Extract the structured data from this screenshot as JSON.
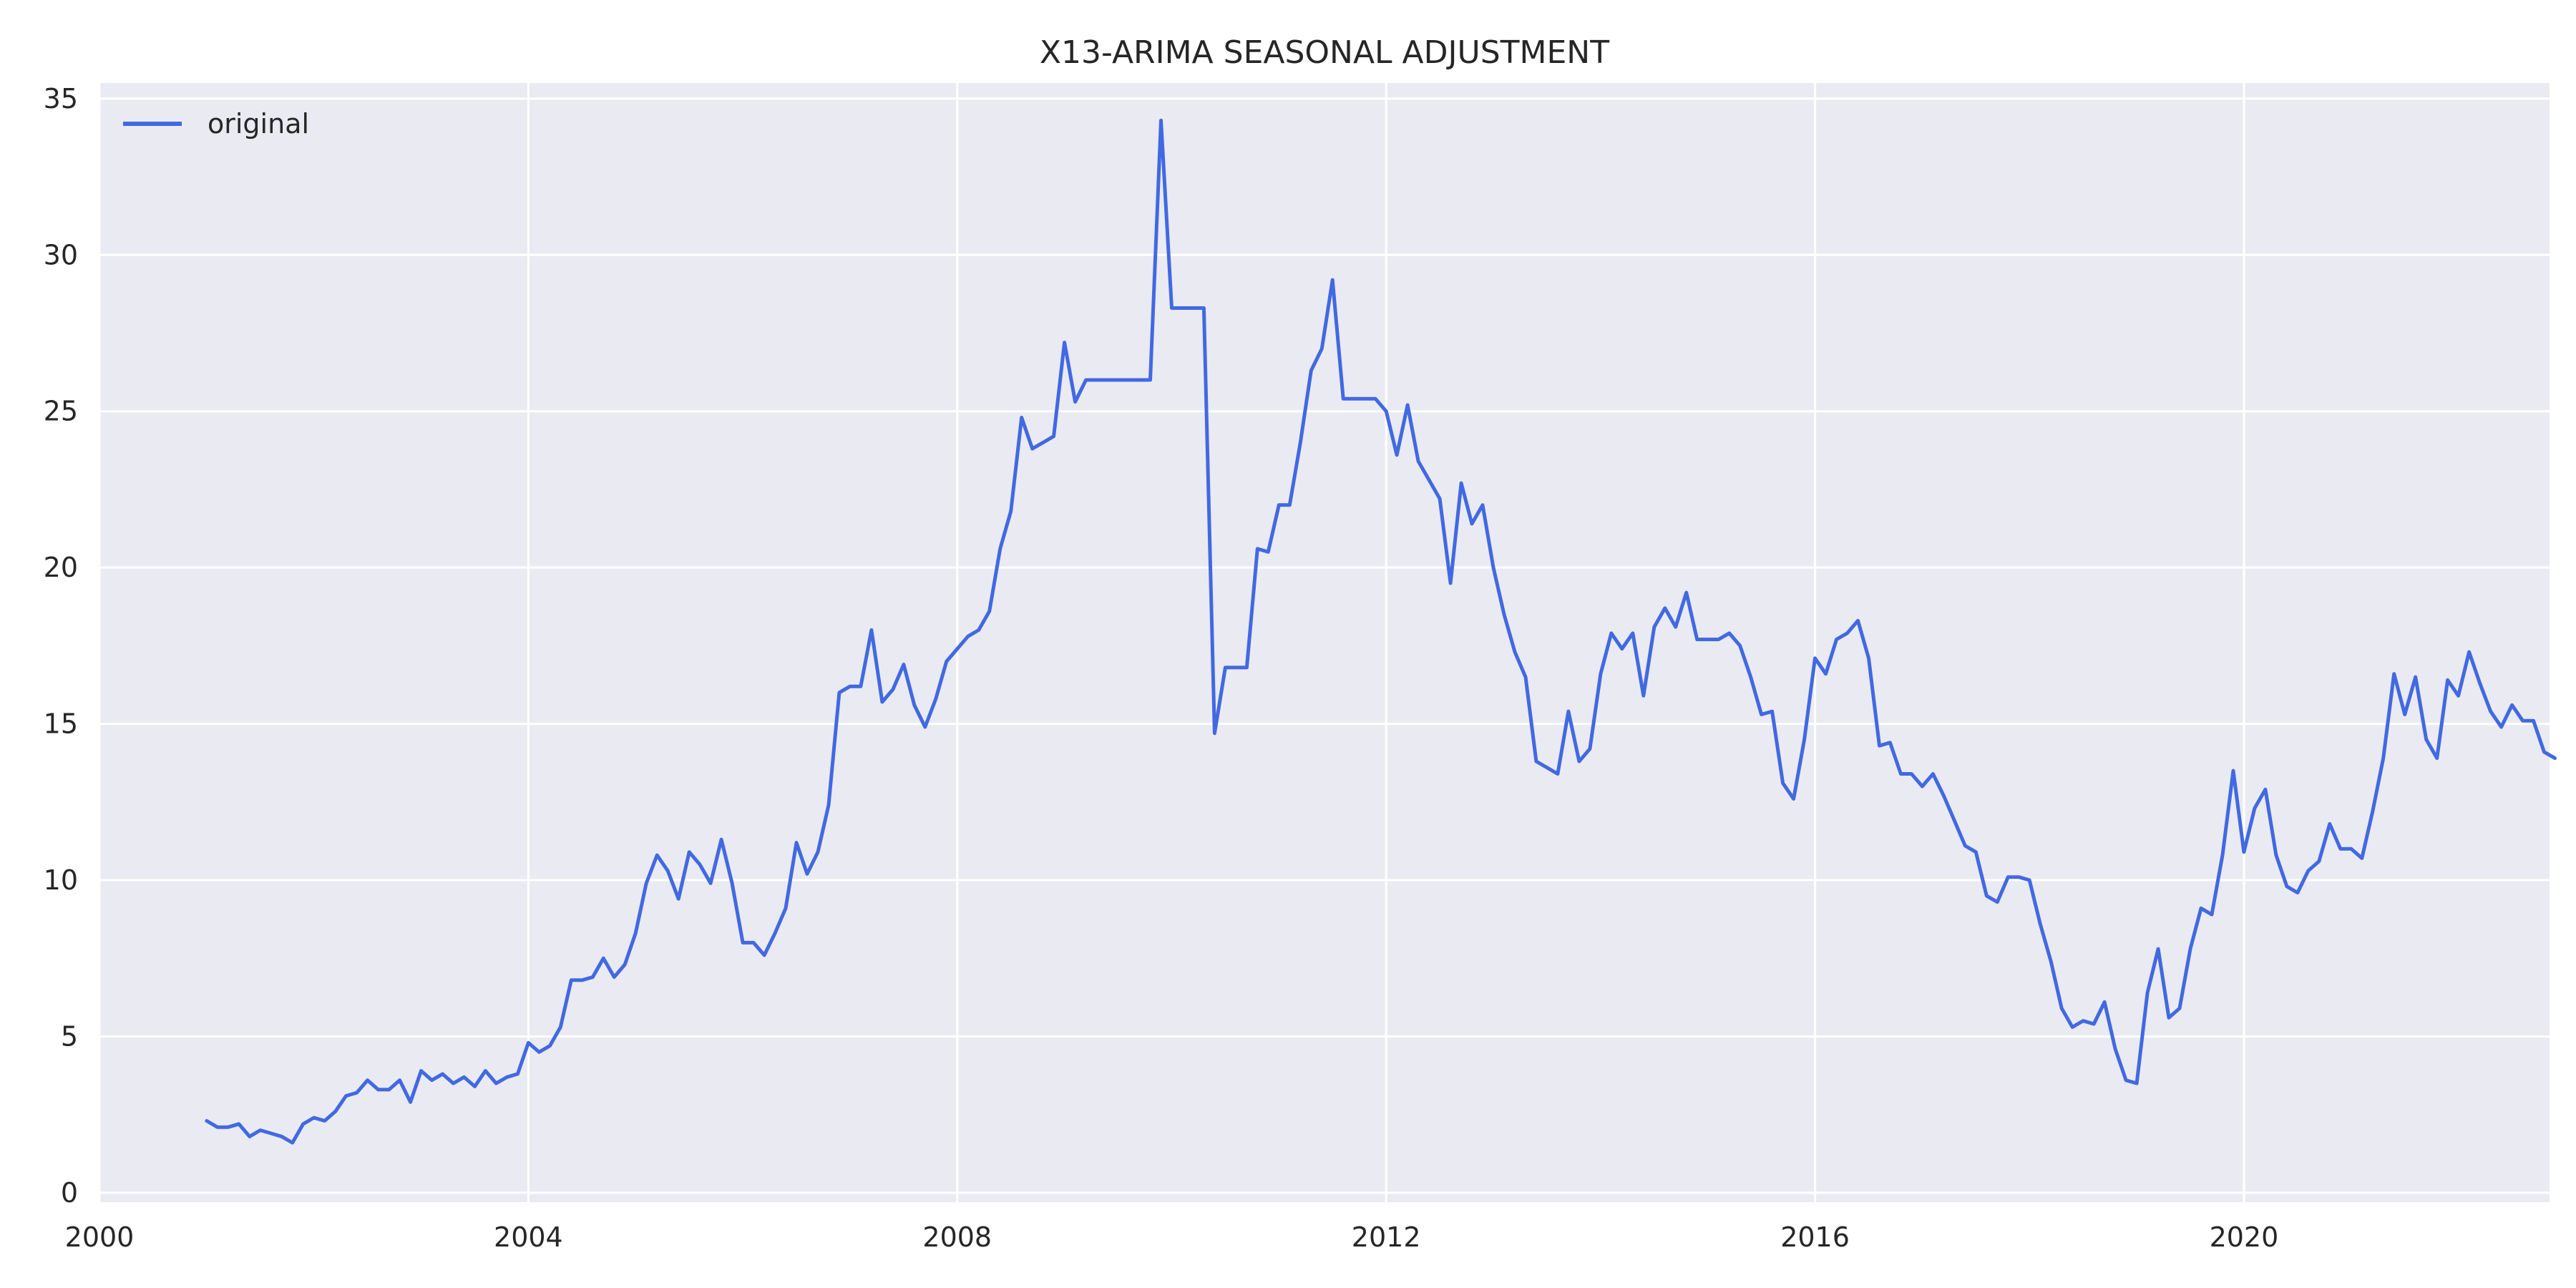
{
  "chart_data": {
    "type": "line",
    "title": "X13-ARIMA SEASONAL ADJUSTMENT",
    "xlabel": "",
    "ylabel": "",
    "xlim": [
      2000,
      2022.85
    ],
    "ylim": [
      -0.3,
      35.5
    ],
    "x_ticks": [
      "2000",
      "2004",
      "2008",
      "2012",
      "2016",
      "2020"
    ],
    "y_ticks": [
      "0",
      "5",
      "10",
      "15",
      "20",
      "25",
      "30",
      "35"
    ],
    "grid": true,
    "legend": "top-left",
    "colors": {
      "background": "#EAEAF2",
      "grid": "#FFFFFF",
      "text": "#262626"
    },
    "series": [
      {
        "name": "original",
        "color": "#4169E1",
        "points": [
          [
            2001.0,
            2.3
          ],
          [
            2001.1,
            2.1
          ],
          [
            2001.2,
            2.1
          ],
          [
            2001.3,
            2.2
          ],
          [
            2001.4,
            1.8
          ],
          [
            2001.5,
            2.0
          ],
          [
            2001.6,
            1.9
          ],
          [
            2001.7,
            1.8
          ],
          [
            2001.8,
            1.6
          ],
          [
            2001.9,
            2.2
          ],
          [
            2002.0,
            2.4
          ],
          [
            2002.1,
            2.3
          ],
          [
            2002.2,
            2.6
          ],
          [
            2002.3,
            3.1
          ],
          [
            2002.4,
            3.2
          ],
          [
            2002.5,
            3.6
          ],
          [
            2002.6,
            3.3
          ],
          [
            2002.7,
            3.3
          ],
          [
            2002.8,
            3.6
          ],
          [
            2002.9,
            2.9
          ],
          [
            2003.0,
            3.9
          ],
          [
            2003.1,
            3.6
          ],
          [
            2003.2,
            3.8
          ],
          [
            2003.3,
            3.5
          ],
          [
            2003.4,
            3.7
          ],
          [
            2003.5,
            3.4
          ],
          [
            2003.6,
            3.9
          ],
          [
            2003.7,
            3.5
          ],
          [
            2003.8,
            3.7
          ],
          [
            2003.9,
            3.8
          ],
          [
            2004.0,
            4.8
          ],
          [
            2004.1,
            4.5
          ],
          [
            2004.2,
            4.7
          ],
          [
            2004.3,
            5.3
          ],
          [
            2004.4,
            6.8
          ],
          [
            2004.5,
            6.8
          ],
          [
            2004.6,
            6.9
          ],
          [
            2004.7,
            7.5
          ],
          [
            2004.8,
            6.9
          ],
          [
            2004.9,
            7.3
          ],
          [
            2005.0,
            8.3
          ],
          [
            2005.1,
            9.9
          ],
          [
            2005.2,
            10.8
          ],
          [
            2005.3,
            10.3
          ],
          [
            2005.4,
            9.4
          ],
          [
            2005.5,
            10.9
          ],
          [
            2005.6,
            10.5
          ],
          [
            2005.7,
            9.9
          ],
          [
            2005.8,
            11.3
          ],
          [
            2005.9,
            9.9
          ],
          [
            2006.0,
            8.0
          ],
          [
            2006.1,
            8.0
          ],
          [
            2006.2,
            7.6
          ],
          [
            2006.3,
            8.3
          ],
          [
            2006.4,
            9.1
          ],
          [
            2006.5,
            11.2
          ],
          [
            2006.6,
            10.2
          ],
          [
            2006.7,
            10.9
          ],
          [
            2006.8,
            12.4
          ],
          [
            2006.9,
            16.0
          ],
          [
            2007.0,
            16.2
          ],
          [
            2007.1,
            16.2
          ],
          [
            2007.2,
            18.0
          ],
          [
            2007.3,
            15.7
          ],
          [
            2007.4,
            16.1
          ],
          [
            2007.5,
            16.9
          ],
          [
            2007.6,
            15.6
          ],
          [
            2007.7,
            14.9
          ],
          [
            2007.8,
            15.8
          ],
          [
            2007.9,
            17.0
          ],
          [
            2008.0,
            17.4
          ],
          [
            2008.1,
            17.8
          ],
          [
            2008.2,
            18.0
          ],
          [
            2008.3,
            18.6
          ],
          [
            2008.4,
            20.6
          ],
          [
            2008.5,
            21.8
          ],
          [
            2008.6,
            24.8
          ],
          [
            2008.7,
            23.8
          ],
          [
            2008.8,
            24.0
          ],
          [
            2008.9,
            24.2
          ],
          [
            2009.0,
            27.2
          ],
          [
            2009.1,
            25.3
          ],
          [
            2009.2,
            26.0
          ],
          [
            2009.3,
            26.0
          ],
          [
            2009.4,
            26.0
          ],
          [
            2009.5,
            26.0
          ],
          [
            2009.6,
            26.0
          ],
          [
            2009.7,
            26.0
          ],
          [
            2009.8,
            26.0
          ],
          [
            2009.9,
            34.3
          ],
          [
            2010.0,
            28.3
          ],
          [
            2010.1,
            28.3
          ],
          [
            2010.2,
            28.3
          ],
          [
            2010.3,
            28.3
          ],
          [
            2010.4,
            14.7
          ],
          [
            2010.5,
            16.8
          ],
          [
            2010.6,
            16.8
          ],
          [
            2010.7,
            16.8
          ],
          [
            2010.8,
            20.6
          ],
          [
            2010.9,
            20.5
          ],
          [
            2011.0,
            22.0
          ],
          [
            2011.1,
            22.0
          ],
          [
            2011.2,
            24.0
          ],
          [
            2011.3,
            26.3
          ],
          [
            2011.4,
            27.0
          ],
          [
            2011.5,
            29.2
          ],
          [
            2011.6,
            25.4
          ],
          [
            2011.7,
            25.4
          ],
          [
            2011.8,
            25.4
          ],
          [
            2011.9,
            25.4
          ],
          [
            2012.0,
            25.0
          ],
          [
            2012.1,
            23.6
          ],
          [
            2012.2,
            25.2
          ],
          [
            2012.3,
            23.4
          ],
          [
            2012.4,
            22.8
          ],
          [
            2012.5,
            22.2
          ],
          [
            2012.6,
            19.5
          ],
          [
            2012.7,
            22.7
          ],
          [
            2012.8,
            21.4
          ],
          [
            2012.9,
            22.0
          ],
          [
            2013.0,
            20.0
          ],
          [
            2013.1,
            18.5
          ],
          [
            2013.2,
            17.3
          ],
          [
            2013.3,
            16.5
          ],
          [
            2013.4,
            13.8
          ],
          [
            2013.5,
            13.6
          ],
          [
            2013.6,
            13.4
          ],
          [
            2013.7,
            15.4
          ],
          [
            2013.8,
            13.8
          ],
          [
            2013.9,
            14.2
          ],
          [
            2014.0,
            16.6
          ],
          [
            2014.1,
            17.9
          ],
          [
            2014.2,
            17.4
          ],
          [
            2014.3,
            17.9
          ],
          [
            2014.4,
            15.9
          ],
          [
            2014.5,
            18.1
          ],
          [
            2014.6,
            18.7
          ],
          [
            2014.7,
            18.1
          ],
          [
            2014.8,
            19.2
          ],
          [
            2014.9,
            17.7
          ],
          [
            2015.0,
            17.7
          ],
          [
            2015.1,
            17.7
          ],
          [
            2015.2,
            17.9
          ],
          [
            2015.3,
            17.5
          ],
          [
            2015.4,
            16.5
          ],
          [
            2015.5,
            15.3
          ],
          [
            2015.6,
            15.4
          ],
          [
            2015.7,
            13.1
          ],
          [
            2015.8,
            12.6
          ],
          [
            2015.9,
            14.5
          ],
          [
            2016.0,
            17.1
          ],
          [
            2016.1,
            16.6
          ],
          [
            2016.2,
            17.7
          ],
          [
            2016.3,
            17.9
          ],
          [
            2016.4,
            18.3
          ],
          [
            2016.5,
            17.1
          ],
          [
            2016.6,
            14.3
          ],
          [
            2016.7,
            14.4
          ],
          [
            2016.8,
            13.4
          ],
          [
            2016.9,
            13.4
          ],
          [
            2017.0,
            13.0
          ],
          [
            2017.1,
            13.4
          ],
          [
            2017.2,
            12.7
          ],
          [
            2017.3,
            11.9
          ],
          [
            2017.4,
            11.1
          ],
          [
            2017.5,
            10.9
          ],
          [
            2017.6,
            9.5
          ],
          [
            2017.7,
            9.3
          ],
          [
            2017.8,
            10.1
          ],
          [
            2017.9,
            10.1
          ],
          [
            2018.0,
            10.0
          ],
          [
            2018.1,
            8.6
          ],
          [
            2018.2,
            7.4
          ],
          [
            2018.3,
            5.9
          ],
          [
            2018.4,
            5.3
          ],
          [
            2018.5,
            5.5
          ],
          [
            2018.6,
            5.4
          ],
          [
            2018.7,
            6.1
          ],
          [
            2018.8,
            4.6
          ],
          [
            2018.9,
            3.6
          ],
          [
            2019.0,
            3.5
          ],
          [
            2019.1,
            6.4
          ],
          [
            2019.2,
            7.8
          ],
          [
            2019.3,
            5.6
          ],
          [
            2019.4,
            5.9
          ],
          [
            2019.5,
            7.8
          ],
          [
            2019.6,
            9.1
          ],
          [
            2019.7,
            8.9
          ],
          [
            2019.8,
            10.8
          ],
          [
            2019.9,
            13.5
          ],
          [
            2020.0,
            10.9
          ],
          [
            2020.1,
            12.3
          ],
          [
            2020.2,
            12.9
          ],
          [
            2020.3,
            10.8
          ],
          [
            2020.4,
            9.8
          ],
          [
            2020.5,
            9.6
          ],
          [
            2020.6,
            10.3
          ],
          [
            2020.7,
            10.6
          ],
          [
            2020.8,
            11.8
          ],
          [
            2020.9,
            11.0
          ],
          [
            2021.0,
            11.0
          ],
          [
            2021.1,
            10.7
          ],
          [
            2021.2,
            12.2
          ],
          [
            2021.3,
            13.9
          ],
          [
            2021.4,
            16.6
          ],
          [
            2021.5,
            15.3
          ],
          [
            2021.6,
            16.5
          ],
          [
            2021.7,
            14.5
          ],
          [
            2021.8,
            13.9
          ],
          [
            2021.9,
            16.4
          ],
          [
            2022.0,
            15.9
          ],
          [
            2022.1,
            17.3
          ],
          [
            2022.2,
            16.3
          ],
          [
            2022.3,
            15.4
          ],
          [
            2022.4,
            14.9
          ],
          [
            2022.5,
            15.6
          ],
          [
            2022.6,
            15.1
          ],
          [
            2022.7,
            15.1
          ],
          [
            2022.8,
            14.1
          ],
          [
            2022.9,
            13.9
          ]
        ]
      }
    ]
  }
}
